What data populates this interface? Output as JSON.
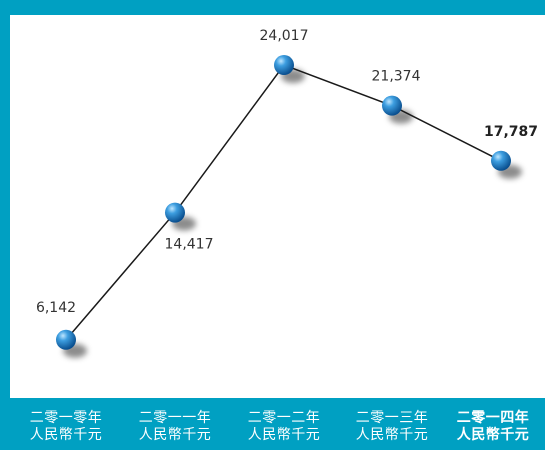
{
  "chart_data": {
    "type": "line",
    "categories": [
      [
        "二零一零年",
        "人民幣千元"
      ],
      [
        "二零一一年",
        "人民幣千元"
      ],
      [
        "二零一二年",
        "人民幣千元"
      ],
      [
        "二零一三年",
        "人民幣千元"
      ],
      [
        "二零一四年",
        "人民幣千元"
      ]
    ],
    "values": [
      6142,
      14417,
      24017,
      21374,
      17787
    ],
    "labels": [
      "6,142",
      "14,417",
      "24,017",
      "21,374",
      "17,787"
    ],
    "highlight_index": 4,
    "ylim": [
      4500,
      24800
    ],
    "grid": false,
    "colors": {
      "background": "#00a0c2",
      "plot": "#ffffff",
      "line": "#1a1a1a",
      "marker": "#1f7fc4",
      "label": "#333333"
    }
  }
}
